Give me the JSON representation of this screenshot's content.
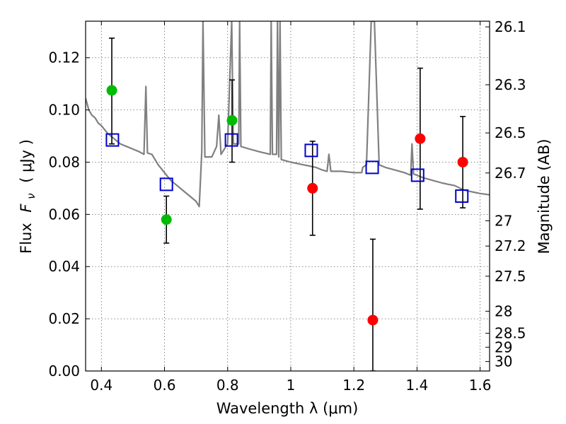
{
  "chart_data": {
    "type": "scatter",
    "xlabel": "Wavelength  λ (μm)",
    "ylabel_prefix": "Flux",
    "ylabel_symbol": "F",
    "ylabel_subscript": "ν",
    "ylabel_unit": "( μJy )",
    "y2label": "Magnitude (AB)",
    "xlim": [
      0.35,
      1.63
    ],
    "ylim": [
      0.0,
      0.134
    ],
    "grid": true,
    "x_ticks": [
      0.4,
      0.6,
      0.8,
      1.0,
      1.2,
      1.4,
      1.6
    ],
    "x_tick_labels": [
      "0.4",
      "0.6",
      "0.8",
      "1",
      "1.2",
      "1.4",
      "1.6"
    ],
    "y_ticks": [
      0.0,
      0.02,
      0.04,
      0.06,
      0.08,
      0.1,
      0.12
    ],
    "y_tick_labels": [
      "0.00",
      "0.02",
      "0.04",
      "0.06",
      "0.08",
      "0.10",
      "0.12"
    ],
    "y2_ticks": [
      26.1,
      26.3,
      26.5,
      26.7,
      27,
      27.2,
      27.5,
      28,
      28.5,
      29,
      30
    ],
    "y2_tick_labels": [
      "26.1",
      "26.3",
      "26.5",
      "26.7",
      "27",
      "27.2",
      "27.5",
      "28",
      "28.5",
      "29",
      "30"
    ],
    "colors": {
      "green": "#00bb00",
      "red": "#ff0000",
      "model_box": "#0000cc",
      "spectrum": "#808080",
      "errorbar": "#000000"
    },
    "series": [
      {
        "marker": "circle",
        "color": "green",
        "x": [
          0.433,
          0.606,
          0.814
        ],
        "y": [
          0.1075,
          0.058,
          0.096
        ],
        "yerr_low": [
          0.087,
          0.049,
          0.08
        ],
        "yerr_high": [
          0.1275,
          0.067,
          0.1115
        ]
      },
      {
        "marker": "circle",
        "color": "red",
        "x": [
          1.069,
          1.26,
          1.41,
          1.545
        ],
        "y": [
          0.07,
          0.0195,
          0.089,
          0.08
        ],
        "yerr_low": [
          0.052,
          0.0,
          0.062,
          0.0625
        ],
        "yerr_high": [
          0.088,
          0.0505,
          0.116,
          0.0975
        ]
      },
      {
        "marker": "open-square",
        "color": "model_box",
        "x": [
          0.435,
          0.606,
          0.812,
          1.065,
          1.258,
          1.402,
          1.542
        ],
        "y": [
          0.0885,
          0.0715,
          0.0885,
          0.0845,
          0.078,
          0.075,
          0.067
        ]
      }
    ],
    "spectrum": {
      "color": "spectrum",
      "points": [
        [
          0.35,
          0.1045
        ],
        [
          0.36,
          0.1
        ],
        [
          0.37,
          0.098
        ],
        [
          0.38,
          0.097
        ],
        [
          0.39,
          0.095
        ],
        [
          0.4,
          0.094
        ],
        [
          0.42,
          0.091
        ],
        [
          0.44,
          0.089
        ],
        [
          0.46,
          0.087
        ],
        [
          0.48,
          0.086
        ],
        [
          0.5,
          0.085
        ],
        [
          0.52,
          0.084
        ],
        [
          0.535,
          0.083
        ],
        [
          0.541,
          0.109
        ],
        [
          0.546,
          0.0835
        ],
        [
          0.56,
          0.083
        ],
        [
          0.58,
          0.079
        ],
        [
          0.6,
          0.076
        ],
        [
          0.62,
          0.073
        ],
        [
          0.64,
          0.071
        ],
        [
          0.66,
          0.069
        ],
        [
          0.68,
          0.067
        ],
        [
          0.7,
          0.065
        ],
        [
          0.71,
          0.063
        ],
        [
          0.718,
          0.084
        ],
        [
          0.722,
          0.134
        ],
        [
          0.728,
          0.082
        ],
        [
          0.75,
          0.082
        ],
        [
          0.765,
          0.086
        ],
        [
          0.772,
          0.098
        ],
        [
          0.779,
          0.083
        ],
        [
          0.8,
          0.087
        ],
        [
          0.813,
          0.134
        ],
        [
          0.818,
          0.087
        ],
        [
          0.835,
          0.087
        ],
        [
          0.838,
          0.134
        ],
        [
          0.842,
          0.086
        ],
        [
          0.87,
          0.085
        ],
        [
          0.9,
          0.084
        ],
        [
          0.935,
          0.083
        ],
        [
          0.938,
          0.134
        ],
        [
          0.942,
          0.083
        ],
        [
          0.955,
          0.083
        ],
        [
          0.958,
          0.134
        ],
        [
          0.962,
          0.082
        ],
        [
          0.966,
          0.134
        ],
        [
          0.97,
          0.081
        ],
        [
          1.0,
          0.08
        ],
        [
          1.04,
          0.079
        ],
        [
          1.06,
          0.0785
        ],
        [
          1.08,
          0.078
        ],
        [
          1.1,
          0.077
        ],
        [
          1.115,
          0.0765
        ],
        [
          1.121,
          0.083
        ],
        [
          1.127,
          0.0765
        ],
        [
          1.16,
          0.0765
        ],
        [
          1.2,
          0.076
        ],
        [
          1.225,
          0.076
        ],
        [
          1.228,
          0.078
        ],
        [
          1.24,
          0.079
        ],
        [
          1.255,
          0.134
        ],
        [
          1.265,
          0.134
        ],
        [
          1.28,
          0.079
        ],
        [
          1.3,
          0.078
        ],
        [
          1.33,
          0.077
        ],
        [
          1.36,
          0.076
        ],
        [
          1.38,
          0.075
        ],
        [
          1.384,
          0.087
        ],
        [
          1.389,
          0.0755
        ],
        [
          1.42,
          0.074
        ],
        [
          1.45,
          0.073
        ],
        [
          1.48,
          0.072
        ],
        [
          1.5,
          0.0715
        ],
        [
          1.52,
          0.071
        ],
        [
          1.545,
          0.0695
        ],
        [
          1.56,
          0.069
        ],
        [
          1.58,
          0.0685
        ],
        [
          1.6,
          0.068
        ],
        [
          1.63,
          0.0675
        ]
      ]
    }
  }
}
